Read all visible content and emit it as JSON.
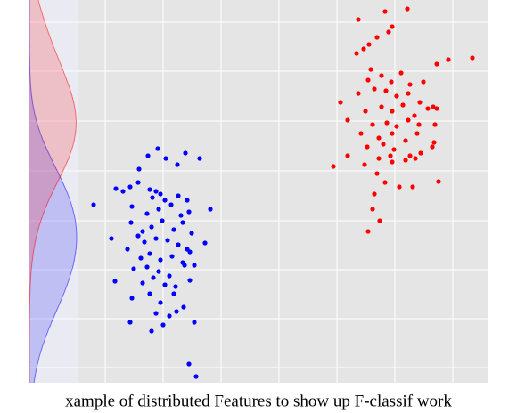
{
  "chart_data": {
    "type": "scatter",
    "caption": "xample of distributed Features to show up F-classif work",
    "xlim": [
      88,
      548
    ],
    "ylim": [
      0,
      430
    ],
    "xticks": [
      118,
      183,
      248,
      313,
      378,
      443,
      508
    ],
    "yticks": [
      17,
      72,
      127,
      182,
      238,
      294,
      350,
      405
    ],
    "grid": true,
    "series": [
      {
        "color": "#0000ff",
        "x": [
          105,
          177,
          166,
          156,
          186,
          199,
          208,
          224,
          130,
          138,
          146,
          155,
          168,
          175,
          180,
          171,
          185,
          200,
          210,
          148,
          165,
          178,
          192,
          203,
          212,
          236,
          147,
          160,
          170,
          182,
          195,
          205,
          215,
          125,
          155,
          162,
          175,
          188,
          200,
          210,
          230,
          143,
          158,
          168,
          180,
          193,
          205,
          213,
          150,
          165,
          178,
          190,
          207,
          218,
          129,
          160,
          172,
          185,
          197,
          213,
          148,
          168,
          180,
          195,
          206,
          175,
          190,
          198,
          146,
          170,
          183,
          218,
          212,
          220
        ],
        "values": [
          200,
          263,
          255,
          240,
          252,
          245,
          258,
          252,
          218,
          215,
          220,
          225,
          217,
          215,
          212,
          208,
          205,
          210,
          205,
          198,
          190,
          195,
          200,
          188,
          192,
          195,
          180,
          170,
          175,
          182,
          172,
          180,
          168,
          162,
          165,
          158,
          162,
          160,
          155,
          150,
          157,
          150,
          140,
          145,
          138,
          142,
          135,
          147,
          128,
          130,
          125,
          120,
          132,
          132,
          114,
          112,
          118,
          110,
          108,
          115,
          95,
          100,
          90,
          100,
          85,
          78,
          75,
          80,
          68,
          58,
          65,
          68,
          21,
          7
        ]
      },
      {
        "color": "#ff0000",
        "x": [
          432,
          457,
          402,
          440,
          436,
          423,
          414,
          408,
          530,
          503,
          490,
          400,
          416,
          428,
          450,
          413,
          439,
          460,
          475,
          382,
          402,
          420,
          433,
          445,
          458,
          471,
          486,
          390,
          410,
          428,
          440,
          452,
          465,
          480,
          490,
          418,
          434,
          445,
          458,
          470,
          488,
          405,
          425,
          440,
          455,
          468,
          487,
          412,
          430,
          442,
          460,
          472,
          485,
          374,
          390,
          409,
          425,
          440,
          455,
          466,
          423,
          432,
          448,
          463,
          492,
          420,
          418,
          426,
          413,
          438
        ],
        "values": [
          417,
          420,
          408,
          400,
          394,
          388,
          380,
          375,
          365,
          363,
          358,
          370,
          352,
          345,
          348,
          340,
          338,
          335,
          338,
          315,
          325,
          330,
          328,
          322,
          325,
          315,
          310,
          295,
          305,
          310,
          305,
          312,
          300,
          308,
          308,
          290,
          292,
          288,
          295,
          290,
          290,
          280,
          275,
          280,
          272,
          280,
          270,
          265,
          268,
          262,
          255,
          258,
          265,
          243,
          255,
          245,
          252,
          248,
          250,
          252,
          235,
          225,
          220,
          220,
          226,
          212,
          195,
          182,
          170,
          255
        ]
      }
    ]
  }
}
